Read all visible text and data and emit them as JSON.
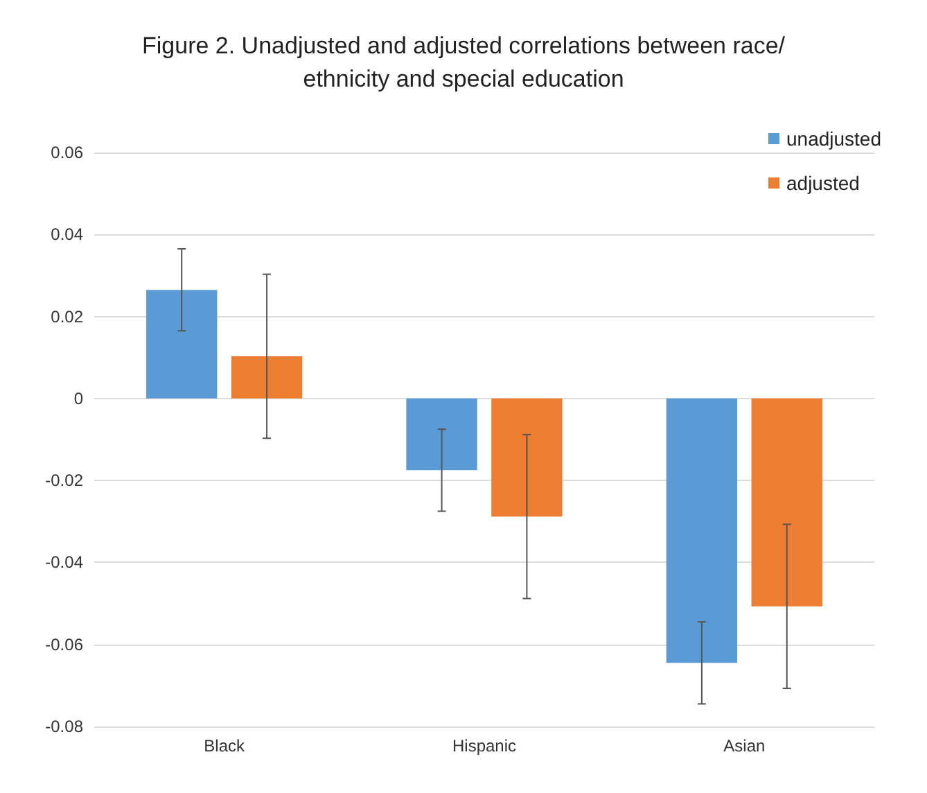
{
  "chart_data": {
    "type": "bar",
    "title": "Figure 2. Unadjusted and adjusted correlations between race/ethnicity and special education",
    "categories": [
      "Black",
      "Hispanic",
      "Asian"
    ],
    "series": [
      {
        "name": "unadjusted",
        "color": "#5b9bd5",
        "values": [
          0.0265,
          -0.0175,
          -0.0645
        ],
        "errors": [
          0.01,
          0.01,
          0.01
        ]
      },
      {
        "name": "adjusted",
        "color": "#ed7d31",
        "values": [
          0.0103,
          -0.0288,
          -0.0507
        ],
        "errors": [
          0.02,
          0.02,
          0.02
        ]
      }
    ],
    "ylim": [
      -0.08,
      0.06
    ],
    "yticks": [
      -0.08,
      -0.06,
      -0.04,
      -0.02,
      0,
      0.02,
      0.04,
      0.06
    ],
    "grid": "y",
    "legend": "top right"
  }
}
